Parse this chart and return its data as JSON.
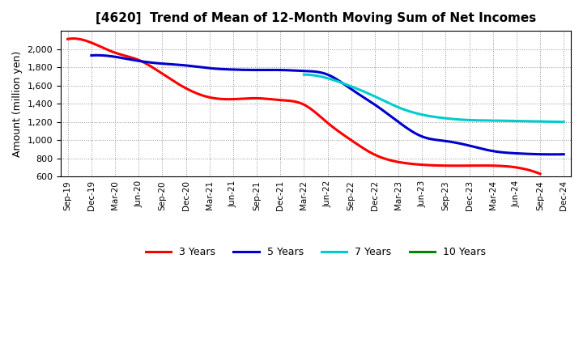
{
  "title": "[4620]  Trend of Mean of 12-Month Moving Sum of Net Incomes",
  "ylabel": "Amount (million yen)",
  "background_color": "#ffffff",
  "grid_color": "#aaaaaa",
  "ylim": [
    600,
    2200
  ],
  "yticks": [
    600,
    800,
    1000,
    1200,
    1400,
    1600,
    1800,
    2000
  ],
  "x_labels": [
    "Sep-19",
    "Dec-19",
    "Mar-20",
    "Jun-20",
    "Sep-20",
    "Dec-20",
    "Mar-21",
    "Jun-21",
    "Sep-21",
    "Dec-21",
    "Mar-22",
    "Jun-22",
    "Sep-22",
    "Dec-22",
    "Mar-23",
    "Jun-23",
    "Sep-23",
    "Dec-23",
    "Mar-24",
    "Jun-24",
    "Sep-24",
    "Dec-24"
  ],
  "series_3y": {
    "color": "#ff0000",
    "x": [
      0,
      1,
      2,
      3,
      4,
      5,
      6,
      7,
      8,
      9,
      10,
      11,
      12,
      13,
      14,
      15,
      16,
      17,
      18,
      19,
      20
    ],
    "y": [
      2110,
      2070,
      1960,
      1880,
      1730,
      1570,
      1470,
      1450,
      1460,
      1440,
      1390,
      1190,
      1000,
      840,
      760,
      730,
      720,
      720,
      720,
      700,
      630
    ]
  },
  "series_5y": {
    "color": "#0000cc",
    "x": [
      1,
      2,
      3,
      4,
      5,
      6,
      7,
      8,
      9,
      10,
      11,
      12,
      13,
      14,
      15,
      16,
      17,
      18,
      19,
      20,
      21
    ],
    "y": [
      1930,
      1915,
      1870,
      1840,
      1820,
      1790,
      1775,
      1770,
      1770,
      1760,
      1720,
      1560,
      1390,
      1200,
      1040,
      990,
      940,
      880,
      855,
      845,
      845
    ]
  },
  "series_7y": {
    "color": "#00cccc",
    "x": [
      10,
      11,
      12,
      13,
      14,
      15,
      16,
      17,
      18,
      19,
      20,
      21
    ],
    "y": [
      1720,
      1680,
      1590,
      1480,
      1360,
      1280,
      1240,
      1220,
      1215,
      1210,
      1205,
      1200
    ]
  },
  "series_10y": {
    "color": "#008800",
    "x": [],
    "y": []
  },
  "legend_labels": [
    "3 Years",
    "5 Years",
    "7 Years",
    "10 Years"
  ],
  "legend_colors": [
    "#ff0000",
    "#0000cc",
    "#00cccc",
    "#008800"
  ]
}
